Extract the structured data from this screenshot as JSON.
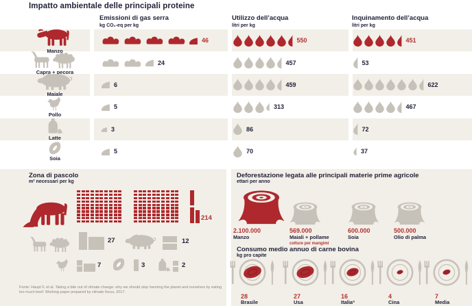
{
  "title": "Impatto ambientale delle principali proteine",
  "colors": {
    "red": "#ae282d",
    "red_text": "#b23230",
    "gray": "#c7c2b9",
    "dark": "#22223a",
    "beige": "#f2efe8"
  },
  "table": {
    "columns": [
      {
        "label": "Emissioni di gas serra",
        "unit": "kg CO₂-eq per kg"
      },
      {
        "label": "Utilizzo dell’acqua",
        "unit": "litri per kg"
      },
      {
        "label": "Inquinamento dell’acqua",
        "unit": "litri per kg"
      }
    ],
    "rows": [
      {
        "animal": "Manzo",
        "icon": "cow",
        "highlight": true,
        "cells": {
          "gas": {
            "value": "46",
            "full": 4,
            "half": true
          },
          "water_use": {
            "value": "550",
            "full": 5,
            "half": true
          },
          "water_pollution": {
            "value": "451",
            "full": 4,
            "half": true
          }
        }
      },
      {
        "animal": "Capra + pecora",
        "icon": "goat-sheep",
        "highlight": false,
        "cells": {
          "gas": {
            "value": "24",
            "full": 2,
            "half": true
          },
          "water_use": {
            "value": "457",
            "full": 4,
            "half": true
          },
          "water_pollution": {
            "value": "53",
            "full": 0,
            "half": true
          }
        }
      },
      {
        "animal": "Maiale",
        "icon": "pig",
        "highlight": false,
        "cells": {
          "gas": {
            "value": "6",
            "full": 0,
            "half": true
          },
          "water_use": {
            "value": "459",
            "full": 4,
            "half": true
          },
          "water_pollution": {
            "value": "622",
            "full": 6,
            "half": true
          }
        }
      },
      {
        "animal": "Pollo",
        "icon": "chicken",
        "highlight": false,
        "cells": {
          "gas": {
            "value": "5",
            "full": 0,
            "half": true
          },
          "water_use": {
            "value": "313",
            "full": 3,
            "half": true,
            "small_half": true
          },
          "water_pollution": {
            "value": "467",
            "full": 4,
            "half": true
          }
        }
      },
      {
        "animal": "Latte",
        "icon": "milk",
        "highlight": false,
        "cells": {
          "gas": {
            "value": "3",
            "full": 0,
            "half": true,
            "small_half": true
          },
          "water_use": {
            "value": "86",
            "full": 1,
            "half": false
          },
          "water_pollution": {
            "value": "72",
            "full": 0,
            "half": true
          }
        }
      },
      {
        "animal": "Soia",
        "icon": "soy",
        "highlight": false,
        "cells": {
          "gas": {
            "value": "5",
            "full": 0,
            "half": true
          },
          "water_use": {
            "value": "70",
            "full": 1,
            "half": false
          },
          "water_pollution": {
            "value": "37",
            "full": 0,
            "half": true,
            "small_half": true
          }
        }
      }
    ]
  },
  "pasture": {
    "title": "Zona di pascolo",
    "unit": "m² necessari per kg",
    "items": [
      {
        "label": "Manzo",
        "icon": "cow",
        "value": "214",
        "highlight": true
      },
      {
        "label": "Capra + pecora",
        "icon": "goat-sheep",
        "value": "27",
        "highlight": false
      },
      {
        "label": "Maiale",
        "icon": "pig",
        "value": "12",
        "highlight": false
      },
      {
        "label": "Pollo",
        "icon": "chicken",
        "value": "7",
        "highlight": false
      },
      {
        "label": "Soia",
        "icon": "soy",
        "value": "3",
        "highlight": false
      },
      {
        "label": "Latte",
        "icon": "milk",
        "value": "2",
        "highlight": false
      }
    ]
  },
  "deforestation": {
    "title": "Deforestazione legata alle principali materie prime agricole",
    "unit": "ettari per anno",
    "items": [
      {
        "value": "2.100.000",
        "label": "Manzo",
        "sublabel": "",
        "highlight": true
      },
      {
        "value": "569.000",
        "label": "Maiali + pollame",
        "sublabel": "colture per mangimi",
        "highlight": false
      },
      {
        "value": "600.000",
        "label": "Soia",
        "sublabel": "",
        "highlight": false
      },
      {
        "value": "500.000",
        "label": "Olio di palma",
        "sublabel": "",
        "highlight": false
      }
    ]
  },
  "consumption": {
    "title": "Consumo medio annuo di carne bovina",
    "unit": "kg pro capite",
    "items": [
      {
        "value": "28",
        "label": "Brasile"
      },
      {
        "value": "27",
        "label": "Usa"
      },
      {
        "value": "16",
        "label": "Italiaª"
      },
      {
        "value": "4",
        "label": "Cina"
      },
      {
        "value": "7",
        "label": "Media mondiale"
      }
    ]
  },
  "source": "Fonte: Haupt F, et al. Taking a bite out of climate change: why we should stop harming the planet and ourselves by eating too much beef. Working paper prepared by climate focus, 2017.",
  "chart_data": [
    {
      "type": "bar",
      "title": "Impatto ambientale delle principali proteine",
      "categories": [
        "Manzo",
        "Capra + pecora",
        "Maiale",
        "Pollo",
        "Latte",
        "Soia"
      ],
      "series": [
        {
          "name": "Emissioni di gas serra (kg CO₂-eq per kg)",
          "values": [
            46,
            24,
            6,
            5,
            3,
            5
          ]
        },
        {
          "name": "Utilizzo dell’acqua (litri per kg)",
          "values": [
            550,
            457,
            459,
            313,
            86,
            70
          ]
        },
        {
          "name": "Inquinamento dell’acqua (litri per kg)",
          "values": [
            451,
            53,
            622,
            467,
            72,
            37
          ]
        }
      ]
    },
    {
      "type": "bar",
      "title": "Zona di pascolo (m² necessari per kg)",
      "categories": [
        "Manzo",
        "Capra + pecora",
        "Maiale",
        "Pollo",
        "Soia",
        "Latte"
      ],
      "values": [
        214,
        27,
        12,
        7,
        3,
        2
      ]
    },
    {
      "type": "bar",
      "title": "Deforestazione legata alle principali materie prime agricole (ettari per anno)",
      "categories": [
        "Manzo",
        "Maiali + pollame (colture per mangimi)",
        "Soia",
        "Olio di palma"
      ],
      "values": [
        2100000,
        569000,
        600000,
        500000
      ]
    },
    {
      "type": "bar",
      "title": "Consumo medio annuo di carne bovina (kg pro capite)",
      "categories": [
        "Brasile",
        "Usa",
        "Italiaª",
        "Cina",
        "Media mondiale"
      ],
      "values": [
        28,
        27,
        16,
        4,
        7
      ]
    }
  ]
}
